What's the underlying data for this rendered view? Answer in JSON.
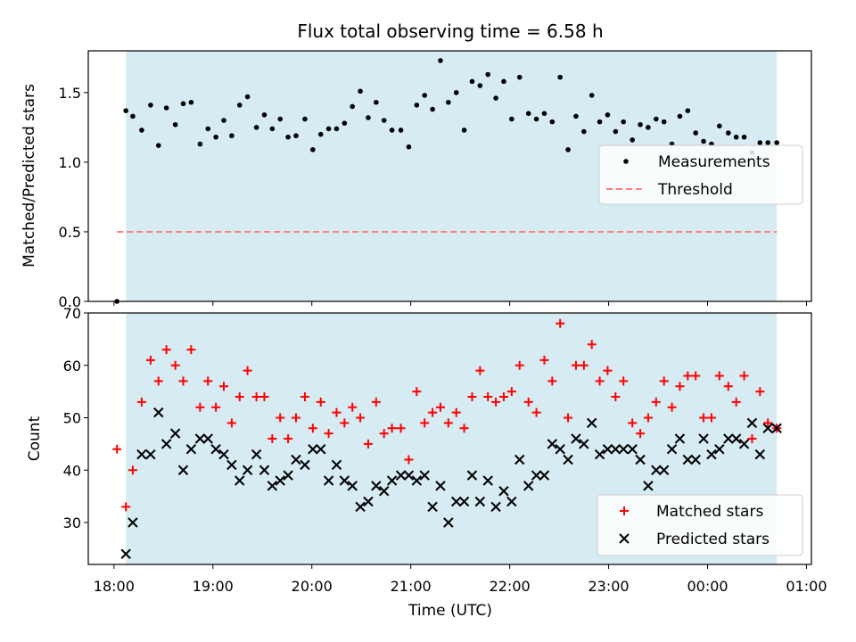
{
  "chart_data": {
    "title": "Flux total observing time = 6.58 h",
    "xlabel": "Time (UTC)",
    "x_unit": "hours since 18:00 UTC",
    "xlim": [
      -0.26,
      7.05
    ],
    "x_ticks": [
      {
        "label": "18:00",
        "value": 0
      },
      {
        "label": "19:00",
        "value": 1
      },
      {
        "label": "20:00",
        "value": 2
      },
      {
        "label": "21:00",
        "value": 3
      },
      {
        "label": "22:00",
        "value": 4
      },
      {
        "label": "23:00",
        "value": 5
      },
      {
        "label": "00:00",
        "value": 6
      },
      {
        "label": "01:00",
        "value": 7
      }
    ],
    "observing_window": {
      "start": 0.12,
      "end": 6.7,
      "color": "#add8e6"
    },
    "top_panel": {
      "type": "scatter",
      "ylabel": "Matched/Predicted stars",
      "ylim": [
        0,
        1.8
      ],
      "y_ticks": [
        "0.0",
        "0.5",
        "1.0",
        "1.5"
      ],
      "y_tick_values": [
        0,
        0.5,
        1.0,
        1.5
      ],
      "legend_position": "center-right",
      "series": [
        {
          "name": "Measurements",
          "marker": "dot",
          "color": "#000000",
          "x": [
            0.03,
            0.12,
            0.19,
            0.28,
            0.37,
            0.45,
            0.53,
            0.62,
            0.7,
            0.78,
            0.87,
            0.95,
            1.03,
            1.11,
            1.19,
            1.27,
            1.35,
            1.44,
            1.52,
            1.6,
            1.68,
            1.76,
            1.84,
            1.93,
            2.01,
            2.09,
            2.17,
            2.25,
            2.33,
            2.41,
            2.49,
            2.57,
            2.65,
            2.73,
            2.81,
            2.9,
            2.98,
            3.06,
            3.14,
            3.22,
            3.3,
            3.38,
            3.46,
            3.54,
            3.62,
            3.7,
            3.78,
            3.86,
            3.94,
            4.02,
            4.1,
            4.19,
            4.27,
            4.35,
            4.43,
            4.51,
            4.59,
            4.67,
            4.75,
            4.83,
            4.91,
            4.99,
            5.07,
            5.15,
            5.24,
            5.32,
            5.4,
            5.48,
            5.56,
            5.64,
            5.72,
            5.8,
            5.88,
            5.96,
            6.04,
            6.12,
            6.21,
            6.29,
            6.37,
            6.45,
            6.53,
            6.61,
            6.7
          ],
          "y": [
            0.0,
            1.37,
            1.33,
            1.23,
            1.41,
            1.12,
            1.39,
            1.27,
            1.42,
            1.43,
            1.13,
            1.24,
            1.18,
            1.3,
            1.19,
            1.41,
            1.47,
            1.25,
            1.34,
            1.24,
            1.31,
            1.18,
            1.19,
            1.31,
            1.09,
            1.2,
            1.24,
            1.24,
            1.28,
            1.4,
            1.51,
            1.32,
            1.43,
            1.3,
            1.23,
            1.23,
            1.11,
            1.41,
            1.48,
            1.38,
            1.73,
            1.43,
            1.5,
            1.23,
            1.58,
            1.55,
            1.63,
            1.46,
            1.58,
            1.31,
            1.61,
            1.35,
            1.31,
            1.35,
            1.29,
            1.61,
            1.09,
            1.33,
            1.22,
            1.48,
            1.29,
            1.34,
            1.22,
            1.29,
            1.16,
            1.27,
            1.25,
            1.31,
            1.29,
            1.13,
            1.33,
            1.37,
            1.21,
            1.15,
            1.13,
            1.26,
            1.21,
            1.18,
            1.18,
            1.07,
            1.14,
            1.14,
            1.14
          ]
        },
        {
          "name": "Threshold",
          "marker": "dashed-line",
          "color": "#ff7f7f",
          "x": [
            0.03,
            6.7
          ],
          "y": [
            0.5,
            0.5
          ]
        }
      ]
    },
    "bottom_panel": {
      "type": "scatter",
      "ylabel": "Count",
      "ylim": [
        22,
        70
      ],
      "y_ticks": [
        "30",
        "40",
        "50",
        "60",
        "70"
      ],
      "y_tick_values": [
        30,
        40,
        50,
        60,
        70
      ],
      "legend_position": "bottom-right",
      "series": [
        {
          "name": "Matched stars",
          "marker": "plus",
          "color": "#ff0000",
          "x": [
            0.03,
            0.12,
            0.19,
            0.28,
            0.37,
            0.45,
            0.53,
            0.62,
            0.7,
            0.78,
            0.87,
            0.95,
            1.03,
            1.11,
            1.19,
            1.27,
            1.35,
            1.44,
            1.52,
            1.6,
            1.68,
            1.76,
            1.84,
            1.93,
            2.01,
            2.09,
            2.17,
            2.25,
            2.33,
            2.41,
            2.49,
            2.57,
            2.65,
            2.73,
            2.81,
            2.9,
            2.98,
            3.06,
            3.14,
            3.22,
            3.3,
            3.38,
            3.46,
            3.54,
            3.62,
            3.7,
            3.78,
            3.86,
            3.94,
            4.02,
            4.1,
            4.19,
            4.27,
            4.35,
            4.43,
            4.51,
            4.59,
            4.67,
            4.75,
            4.83,
            4.91,
            4.99,
            5.07,
            5.15,
            5.24,
            5.32,
            5.4,
            5.48,
            5.56,
            5.64,
            5.72,
            5.8,
            5.88,
            5.96,
            6.04,
            6.12,
            6.21,
            6.29,
            6.37,
            6.45,
            6.53,
            6.61,
            6.7
          ],
          "y": [
            44,
            33,
            40,
            53,
            61,
            57,
            63,
            60,
            57,
            63,
            52,
            57,
            52,
            56,
            49,
            54,
            59,
            54,
            54,
            46,
            50,
            46,
            50,
            54,
            48,
            53,
            47,
            51,
            49,
            52,
            50,
            45,
            53,
            47,
            48,
            48,
            42,
            55,
            49,
            51,
            52,
            49,
            51,
            48,
            54,
            59,
            54,
            53,
            54,
            55,
            60,
            53,
            51,
            61,
            57,
            68,
            50,
            60,
            60,
            64,
            57,
            59,
            54,
            57,
            49,
            47,
            50,
            53,
            57,
            52,
            56,
            58,
            58,
            50,
            50,
            58,
            56,
            53,
            58,
            46,
            55,
            49,
            48
          ],
          "note": "series values truncated at 83 points"
        },
        {
          "name": "Predicted stars",
          "marker": "x",
          "color": "#000000",
          "x": [
            0.12,
            0.19,
            0.28,
            0.37,
            0.45,
            0.53,
            0.62,
            0.7,
            0.78,
            0.87,
            0.95,
            1.03,
            1.11,
            1.19,
            1.27,
            1.35,
            1.44,
            1.52,
            1.6,
            1.68,
            1.76,
            1.84,
            1.93,
            2.01,
            2.09,
            2.17,
            2.25,
            2.33,
            2.41,
            2.49,
            2.57,
            2.65,
            2.73,
            2.81,
            2.9,
            2.98,
            3.06,
            3.14,
            3.22,
            3.3,
            3.38,
            3.46,
            3.54,
            3.62,
            3.7,
            3.78,
            3.86,
            3.94,
            4.02,
            4.1,
            4.19,
            4.27,
            4.35,
            4.43,
            4.51,
            4.59,
            4.67,
            4.75,
            4.83,
            4.91,
            4.99,
            5.07,
            5.15,
            5.24,
            5.32,
            5.4,
            5.48,
            5.56,
            5.64,
            5.72,
            5.8,
            5.88,
            5.96,
            6.04,
            6.12,
            6.21,
            6.29,
            6.37,
            6.45,
            6.53,
            6.61,
            6.7
          ],
          "y": [
            24,
            30,
            43,
            43,
            51,
            45,
            47,
            40,
            44,
            46,
            46,
            44,
            43,
            41,
            38,
            40,
            43,
            40,
            37,
            38,
            39,
            42,
            41,
            44,
            44,
            38,
            41,
            38,
            37,
            33,
            34,
            37,
            36,
            38,
            39,
            39,
            38,
            39,
            33,
            37,
            30,
            34,
            34,
            39,
            34,
            38,
            33,
            36,
            34,
            42,
            37,
            39,
            39,
            45,
            44,
            42,
            46,
            45,
            49,
            43,
            44,
            44,
            44,
            44,
            42,
            37,
            40,
            40,
            44,
            46,
            42,
            42,
            46,
            43,
            44,
            46,
            46,
            45,
            49,
            43,
            48,
            48
          ]
        }
      ]
    }
  }
}
